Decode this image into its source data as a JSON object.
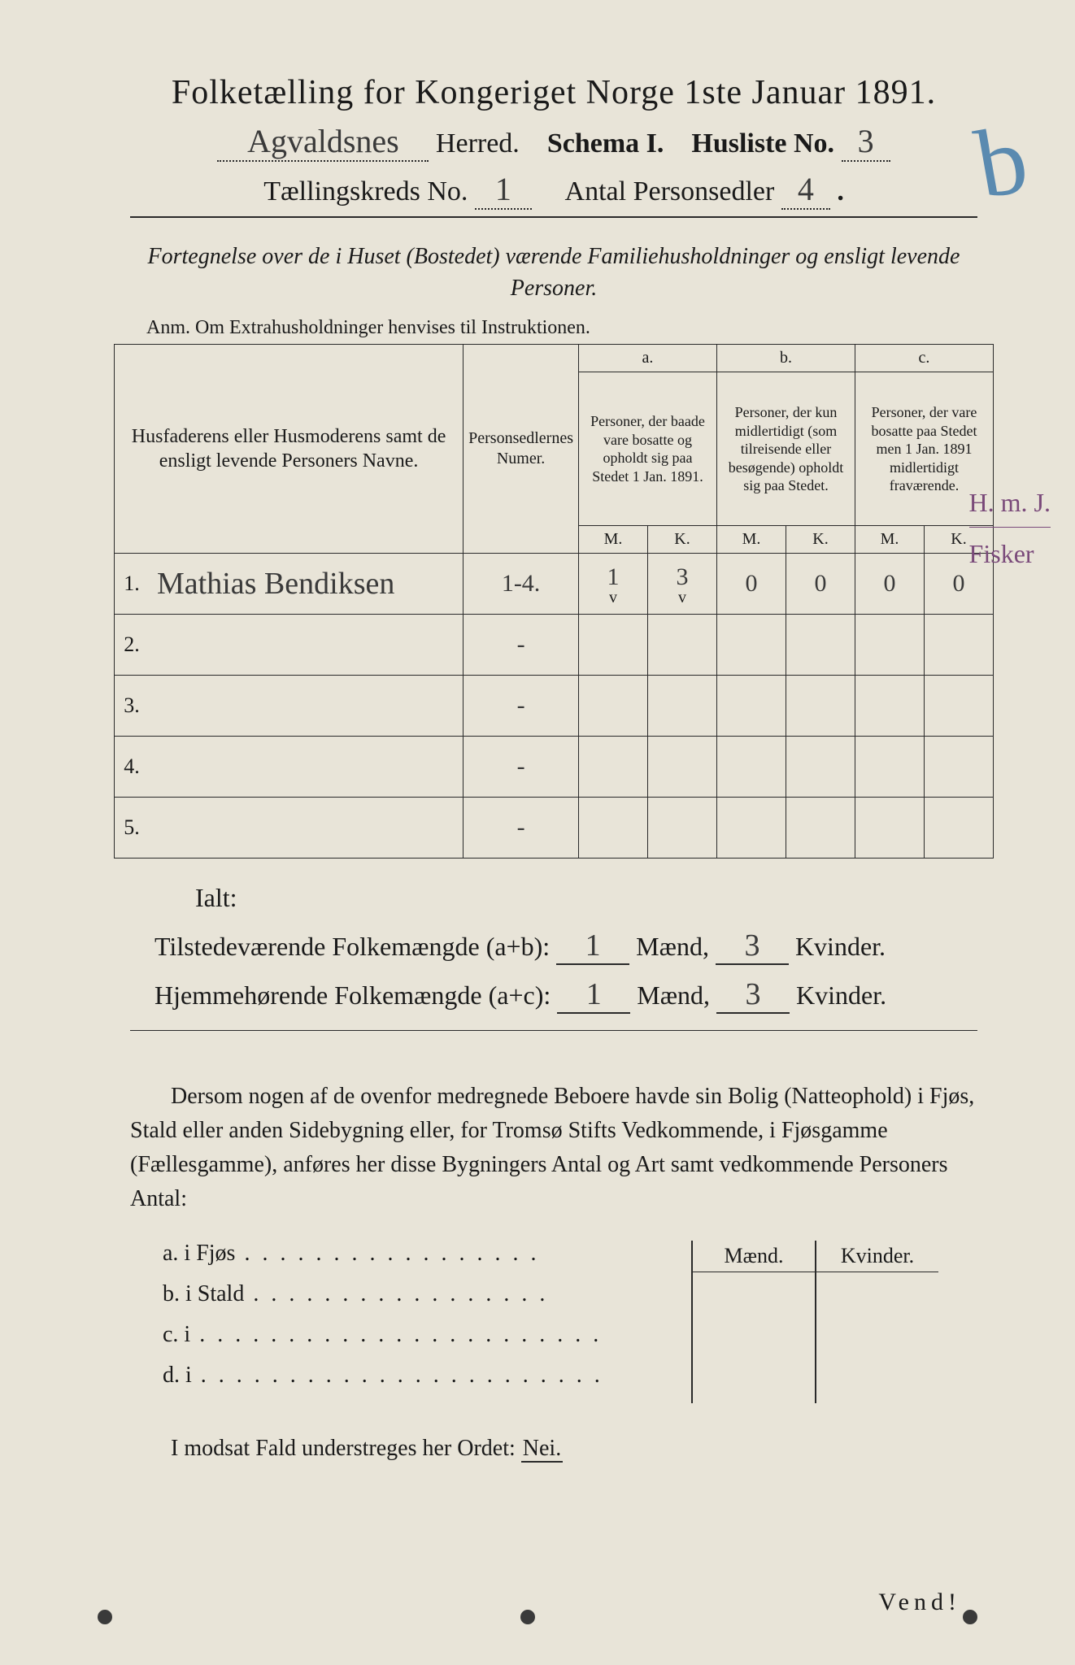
{
  "title": "Folketælling for Kongeriget Norge 1ste Januar 1891.",
  "herred_name": "Agvaldsnes",
  "herred_label": "Herred.",
  "schema_label": "Schema I.",
  "husliste_label": "Husliste No.",
  "husliste_no": "3",
  "kreds_label": "Tællingskreds No.",
  "kreds_no": "1",
  "antal_label": "Antal Personsedler",
  "antal_val": "4",
  "margin_flourish": "b",
  "subtitle": "Fortegnelse over de i Huset (Bostedet) værende Familiehusholdninger og ensligt levende Personer.",
  "anm": "Anm. Om Extrahusholdninger henvises til Instruktionen.",
  "headers": {
    "name": "Husfaderens eller Husmoderens samt de ensligt levende Personers Navne.",
    "num": "Personsedlernes Numer.",
    "a_top": "a.",
    "a": "Personer, der baade vare bosatte og opholdt sig paa Stedet 1 Jan. 1891.",
    "b_top": "b.",
    "b": "Personer, der kun midlertidigt (som tilreisende eller besøgende) opholdt sig paa Stedet.",
    "c_top": "c.",
    "c": "Personer, der vare bosatte paa Stedet men 1 Jan. 1891 midlertidigt fraværende.",
    "m": "M.",
    "k": "K."
  },
  "rows": [
    {
      "n": "1.",
      "name": "Mathias Bendiksen",
      "num": "1-4.",
      "am": "1",
      "ak": "3",
      "av": "v",
      "akv": "v",
      "bm": "0",
      "bk": "0",
      "cm": "0",
      "ck": "0"
    },
    {
      "n": "2.",
      "name": "",
      "num": "-",
      "am": "",
      "ak": "",
      "bm": "",
      "bk": "",
      "cm": "",
      "ck": ""
    },
    {
      "n": "3.",
      "name": "",
      "num": "-",
      "am": "",
      "ak": "",
      "bm": "",
      "bk": "",
      "cm": "",
      "ck": ""
    },
    {
      "n": "4.",
      "name": "",
      "num": "-",
      "am": "",
      "ak": "",
      "bm": "",
      "bk": "",
      "cm": "",
      "ck": ""
    },
    {
      "n": "5.",
      "name": "",
      "num": "-",
      "am": "",
      "ak": "",
      "bm": "",
      "bk": "",
      "cm": "",
      "ck": ""
    }
  ],
  "margin_notes": {
    "line1": "H. m. J.",
    "line2": "Fisker"
  },
  "ialt": "Ialt:",
  "sum1": {
    "label": "Tilstedeværende Folkemængde (a+b):",
    "m": "1",
    "k": "3",
    "maend": "Mænd,",
    "kvinder": "Kvinder."
  },
  "sum2": {
    "label": "Hjemmehørende Folkemængde (a+c):",
    "m": "1",
    "k": "3",
    "maend": "Mænd,",
    "kvinder": "Kvinder."
  },
  "para": "Dersom nogen af de ovenfor medregnede Beboere havde sin Bolig (Natteophold) i Fjøs, Stald eller anden Sidebygning eller, for Tromsø Stifts Vedkommende, i Fjøsgamme (Fællesgamme), anføres her disse Bygningers Antal og Art samt vedkommende Personers Antal:",
  "side": {
    "a": "a.  i      Fjøs",
    "b": "b.  i      Stald",
    "c": "c.  i",
    "d": "d.  i",
    "maend": "Mænd.",
    "kvinder": "Kvinder."
  },
  "nei_line": "I modsat Fald understreges her Ordet:",
  "nei": "Nei.",
  "vend": "Vend!",
  "colors": {
    "paper": "#e8e4d8",
    "ink": "#1a1a1a",
    "pencil": "#3a3a3a",
    "blue": "#5a8ab0",
    "purple": "#7a4a7a"
  }
}
